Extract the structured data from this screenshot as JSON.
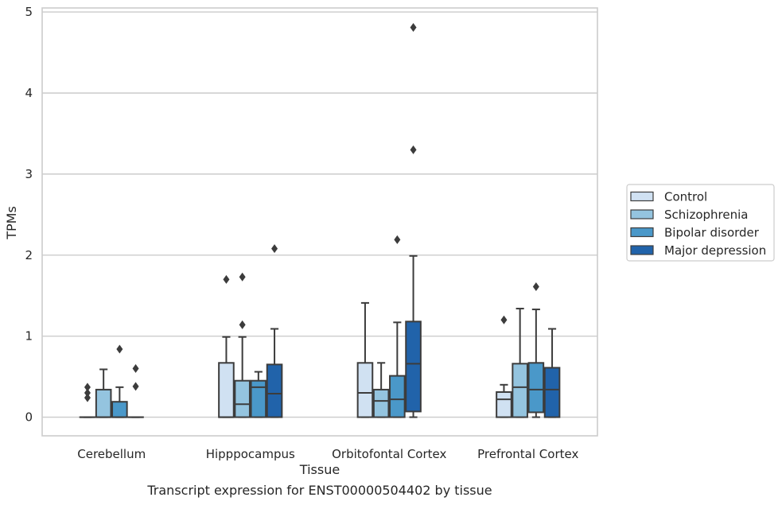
{
  "chart_data": {
    "type": "box",
    "title": "Transcript expression for ENST00000504402 by tissue",
    "xlabel": "Tissue",
    "ylabel": "TPMs",
    "ylim": [
      -0.23,
      5.05
    ],
    "yticks": [
      0,
      1,
      2,
      3,
      4,
      5
    ],
    "grid": "horizontal",
    "legend_position": "right-center",
    "categories": [
      "Cerebellum",
      "Hipppocampus",
      "Orbitofontal Cortex",
      "Prefrontal Cortex"
    ],
    "series": [
      {
        "name": "Control",
        "color": "#d0e1f2",
        "boxes": [
          {
            "whislo": 0,
            "q1": 0,
            "med": 0,
            "q3": 0,
            "whishi": 0,
            "fliers": [
              0.24,
              0.3,
              0.37
            ]
          },
          {
            "whislo": 0,
            "q1": 0,
            "med": 0,
            "q3": 0.67,
            "whishi": 0.99,
            "fliers": [
              1.7
            ]
          },
          {
            "whislo": 0,
            "q1": 0,
            "med": 0.3,
            "q3": 0.67,
            "whishi": 1.41,
            "fliers": []
          },
          {
            "whislo": 0,
            "q1": 0,
            "med": 0.22,
            "q3": 0.31,
            "whishi": 0.4,
            "fliers": [
              1.2
            ]
          }
        ]
      },
      {
        "name": "Schizophrenia",
        "color": "#94c4df",
        "boxes": [
          {
            "whislo": 0,
            "q1": 0,
            "med": 0,
            "q3": 0.34,
            "whishi": 0.59,
            "fliers": []
          },
          {
            "whislo": 0,
            "q1": 0,
            "med": 0.16,
            "q3": 0.45,
            "whishi": 0.99,
            "fliers": [
              1.14,
              1.73
            ]
          },
          {
            "whislo": 0,
            "q1": 0,
            "med": 0.2,
            "q3": 0.34,
            "whishi": 0.67,
            "fliers": []
          },
          {
            "whislo": 0,
            "q1": 0,
            "med": 0.37,
            "q3": 0.66,
            "whishi": 1.34,
            "fliers": []
          }
        ]
      },
      {
        "name": "Bipolar disorder",
        "color": "#4a98c9",
        "boxes": [
          {
            "whislo": 0,
            "q1": 0,
            "med": 0,
            "q3": 0.19,
            "whishi": 0.37,
            "fliers": [
              0.84
            ]
          },
          {
            "whislo": 0,
            "q1": 0,
            "med": 0.37,
            "q3": 0.45,
            "whishi": 0.56,
            "fliers": []
          },
          {
            "whislo": 0,
            "q1": 0,
            "med": 0.22,
            "q3": 0.51,
            "whishi": 1.17,
            "fliers": [
              2.19
            ]
          },
          {
            "whislo": 0,
            "q1": 0.06,
            "med": 0.34,
            "q3": 0.67,
            "whishi": 1.33,
            "fliers": [
              1.61
            ]
          }
        ]
      },
      {
        "name": "Major depression",
        "color": "#2163aa",
        "boxes": [
          {
            "whislo": 0,
            "q1": 0,
            "med": 0,
            "q3": 0,
            "whishi": 0,
            "fliers": [
              0.38,
              0.6
            ]
          },
          {
            "whislo": 0,
            "q1": 0,
            "med": 0.29,
            "q3": 0.65,
            "whishi": 1.09,
            "fliers": [
              2.08
            ]
          },
          {
            "whislo": 0,
            "q1": 0.07,
            "med": 0.66,
            "q3": 1.18,
            "whishi": 1.99,
            "fliers": [
              3.3,
              4.81
            ]
          },
          {
            "whislo": 0,
            "q1": 0,
            "med": 0.34,
            "q3": 0.61,
            "whishi": 1.09,
            "fliers": []
          }
        ]
      }
    ]
  }
}
